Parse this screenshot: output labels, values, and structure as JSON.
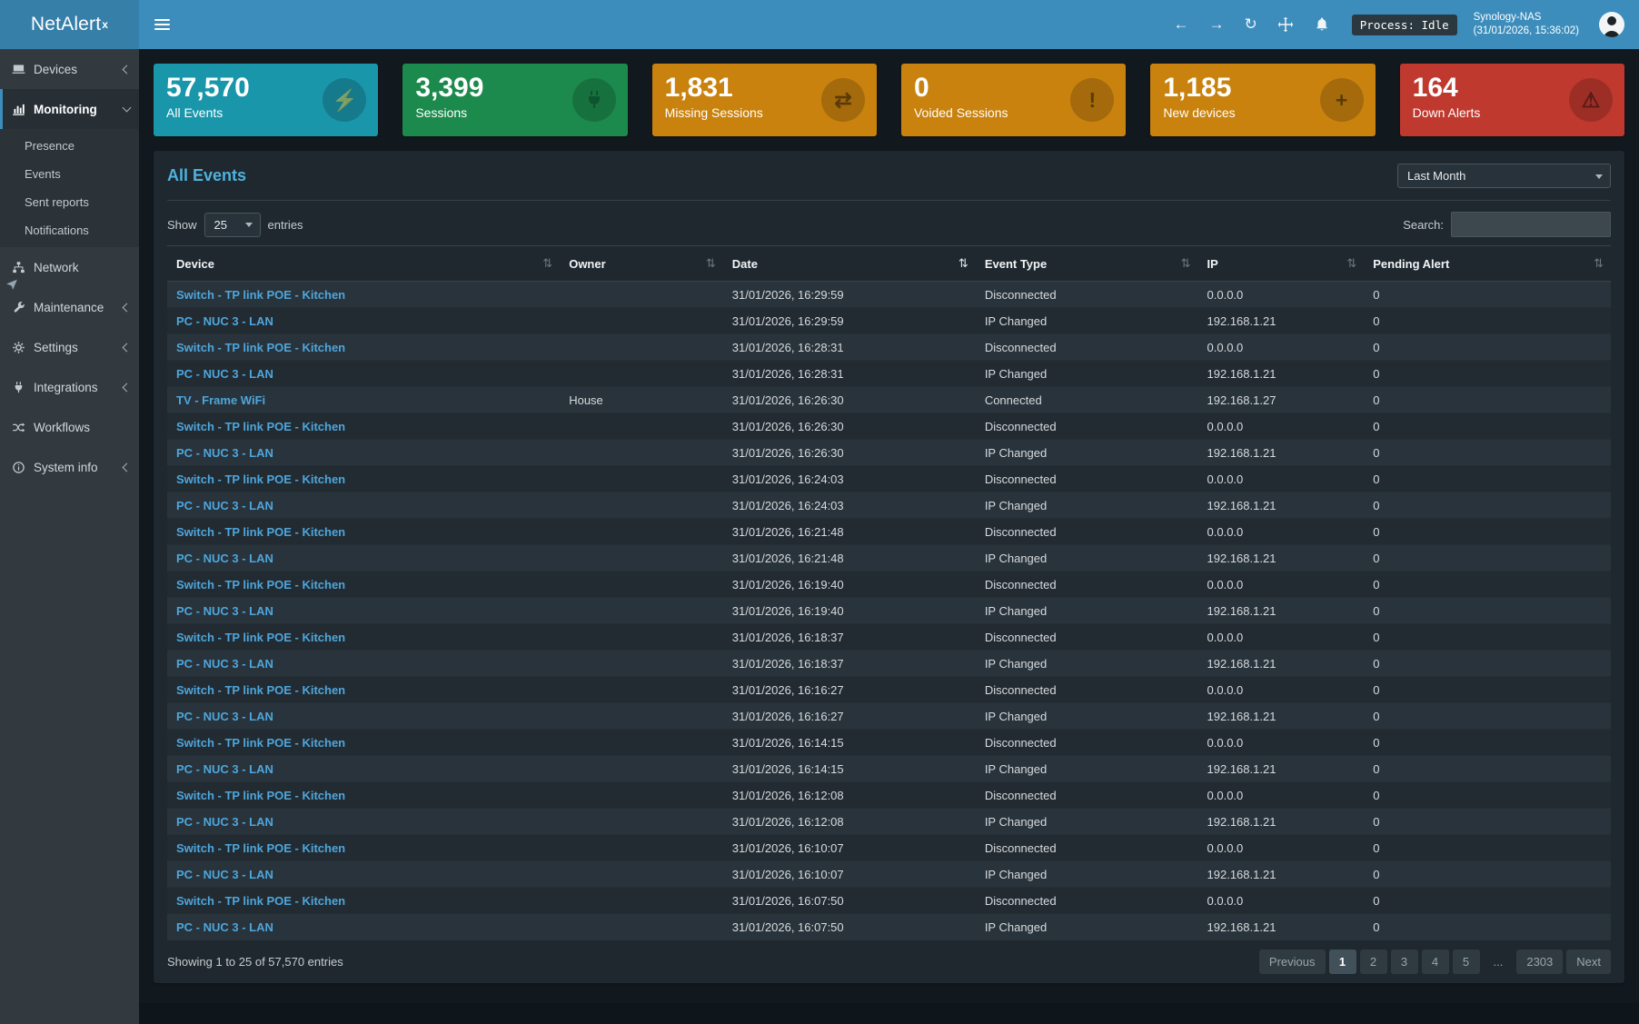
{
  "brand": {
    "name": "NetAlert",
    "sup": "x"
  },
  "topbar": {
    "process": "Process: Idle",
    "host": "Synology-NAS",
    "time": "(31/01/2026, 15:36:02)"
  },
  "glyphs": {
    "back": "←",
    "forward": "→",
    "refresh": "↻",
    "sort": "⇅",
    "bolt": "⚡",
    "exchange": "⇄",
    "exclamation": "!",
    "plus": "+",
    "warning": "⚠"
  },
  "sidebar": {
    "items": [
      {
        "label": "Devices",
        "icon": "devices-icon"
      },
      {
        "label": "Monitoring",
        "icon": "monitoring-icon",
        "active": true
      },
      {
        "label": "Network",
        "icon": "network-icon"
      },
      {
        "label": "Maintenance",
        "icon": "wrench-icon"
      },
      {
        "label": "Settings",
        "icon": "gear-icon"
      },
      {
        "label": "Integrations",
        "icon": "plug-icon"
      },
      {
        "label": "Workflows",
        "icon": "shuffle-icon"
      },
      {
        "label": "System info",
        "icon": "info-icon"
      }
    ],
    "monitoring_submenu": [
      "Presence",
      "Events",
      "Sent reports",
      "Notifications"
    ]
  },
  "cards": [
    {
      "value": "57,570",
      "label": "All Events",
      "color": "#1a96ab",
      "icon": "bolt-icon"
    },
    {
      "value": "3,399",
      "label": "Sessions",
      "color": "#1d8a4d",
      "icon": "plug-icon"
    },
    {
      "value": "1,831",
      "label": "Missing Sessions",
      "color": "#c9820e",
      "icon": "exchange-icon"
    },
    {
      "value": "0",
      "label": "Voided Sessions",
      "color": "#c9820e",
      "icon": "exclamation-circle-icon"
    },
    {
      "value": "1,185",
      "label": "New devices",
      "color": "#c9820e",
      "icon": "plus-circle-icon"
    },
    {
      "value": "164",
      "label": "Down Alerts",
      "color": "#c0392f",
      "icon": "warning-icon"
    }
  ],
  "panel": {
    "title": "All Events",
    "period": "Last Month",
    "show_label": "Show",
    "page_size": "25",
    "entries_label": "entries",
    "search_label": "Search:",
    "table": {
      "columns": [
        "Device",
        "Owner",
        "Date",
        "Event Type",
        "IP",
        "Pending Alert"
      ],
      "rows": [
        [
          "Switch - TP link POE - Kitchen",
          "",
          "31/01/2026, 16:29:59",
          "Disconnected",
          "0.0.0.0",
          "0"
        ],
        [
          "PC - NUC 3 - LAN",
          "",
          "31/01/2026, 16:29:59",
          "IP Changed",
          "192.168.1.21",
          "0"
        ],
        [
          "Switch - TP link POE - Kitchen",
          "",
          "31/01/2026, 16:28:31",
          "Disconnected",
          "0.0.0.0",
          "0"
        ],
        [
          "PC - NUC 3 - LAN",
          "",
          "31/01/2026, 16:28:31",
          "IP Changed",
          "192.168.1.21",
          "0"
        ],
        [
          "TV - Frame WiFi",
          "House",
          "31/01/2026, 16:26:30",
          "Connected",
          "192.168.1.27",
          "0"
        ],
        [
          "Switch - TP link POE - Kitchen",
          "",
          "31/01/2026, 16:26:30",
          "Disconnected",
          "0.0.0.0",
          "0"
        ],
        [
          "PC - NUC 3 - LAN",
          "",
          "31/01/2026, 16:26:30",
          "IP Changed",
          "192.168.1.21",
          "0"
        ],
        [
          "Switch - TP link POE - Kitchen",
          "",
          "31/01/2026, 16:24:03",
          "Disconnected",
          "0.0.0.0",
          "0"
        ],
        [
          "PC - NUC 3 - LAN",
          "",
          "31/01/2026, 16:24:03",
          "IP Changed",
          "192.168.1.21",
          "0"
        ],
        [
          "Switch - TP link POE - Kitchen",
          "",
          "31/01/2026, 16:21:48",
          "Disconnected",
          "0.0.0.0",
          "0"
        ],
        [
          "PC - NUC 3 - LAN",
          "",
          "31/01/2026, 16:21:48",
          "IP Changed",
          "192.168.1.21",
          "0"
        ],
        [
          "Switch - TP link POE - Kitchen",
          "",
          "31/01/2026, 16:19:40",
          "Disconnected",
          "0.0.0.0",
          "0"
        ],
        [
          "PC - NUC 3 - LAN",
          "",
          "31/01/2026, 16:19:40",
          "IP Changed",
          "192.168.1.21",
          "0"
        ],
        [
          "Switch - TP link POE - Kitchen",
          "",
          "31/01/2026, 16:18:37",
          "Disconnected",
          "0.0.0.0",
          "0"
        ],
        [
          "PC - NUC 3 - LAN",
          "",
          "31/01/2026, 16:18:37",
          "IP Changed",
          "192.168.1.21",
          "0"
        ],
        [
          "Switch - TP link POE - Kitchen",
          "",
          "31/01/2026, 16:16:27",
          "Disconnected",
          "0.0.0.0",
          "0"
        ],
        [
          "PC - NUC 3 - LAN",
          "",
          "31/01/2026, 16:16:27",
          "IP Changed",
          "192.168.1.21",
          "0"
        ],
        [
          "Switch - TP link POE - Kitchen",
          "",
          "31/01/2026, 16:14:15",
          "Disconnected",
          "0.0.0.0",
          "0"
        ],
        [
          "PC - NUC 3 - LAN",
          "",
          "31/01/2026, 16:14:15",
          "IP Changed",
          "192.168.1.21",
          "0"
        ],
        [
          "Switch - TP link POE - Kitchen",
          "",
          "31/01/2026, 16:12:08",
          "Disconnected",
          "0.0.0.0",
          "0"
        ],
        [
          "PC - NUC 3 - LAN",
          "",
          "31/01/2026, 16:12:08",
          "IP Changed",
          "192.168.1.21",
          "0"
        ],
        [
          "Switch - TP link POE - Kitchen",
          "",
          "31/01/2026, 16:10:07",
          "Disconnected",
          "0.0.0.0",
          "0"
        ],
        [
          "PC - NUC 3 - LAN",
          "",
          "31/01/2026, 16:10:07",
          "IP Changed",
          "192.168.1.21",
          "0"
        ],
        [
          "Switch - TP link POE - Kitchen",
          "",
          "31/01/2026, 16:07:50",
          "Disconnected",
          "0.0.0.0",
          "0"
        ],
        [
          "PC - NUC 3 - LAN",
          "",
          "31/01/2026, 16:07:50",
          "IP Changed",
          "192.168.1.21",
          "0"
        ]
      ]
    },
    "footer": {
      "summary": "Showing 1 to 25 of 57,570 entries",
      "pages": [
        {
          "label": "Previous",
          "type": "nav"
        },
        {
          "label": "1",
          "type": "page",
          "active": true
        },
        {
          "label": "2",
          "type": "page"
        },
        {
          "label": "3",
          "type": "page"
        },
        {
          "label": "4",
          "type": "page"
        },
        {
          "label": "5",
          "type": "page"
        },
        {
          "label": "...",
          "type": "ellipsis"
        },
        {
          "label": "2303",
          "type": "page"
        },
        {
          "label": "Next",
          "type": "nav"
        }
      ]
    }
  }
}
